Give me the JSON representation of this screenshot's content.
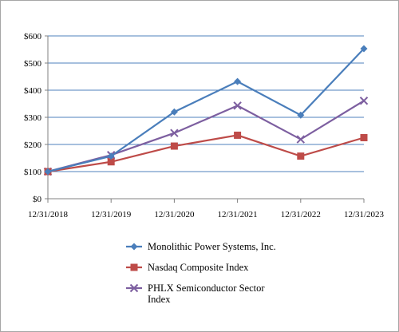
{
  "chart_data": {
    "type": "line",
    "categories": [
      "12/31/2018",
      "12/31/2019",
      "12/31/2020",
      "12/31/2021",
      "12/31/2022",
      "12/31/2023"
    ],
    "ylim": [
      0,
      600
    ],
    "yticks": [
      0,
      100,
      200,
      300,
      400,
      500,
      600
    ],
    "ytick_labels": [
      "$0",
      "$100",
      "$200",
      "$300",
      "$400",
      "$500",
      "$600"
    ],
    "grid": true,
    "legend_placement": "bottom",
    "series": [
      {
        "name": "Monolithic Power Systems, Inc.",
        "values": [
          100,
          157,
          320,
          432,
          308,
          553
        ],
        "color": "#4a7ebb",
        "marker": "diamond"
      },
      {
        "name": "Nasdaq Composite Index",
        "values": [
          100,
          136,
          194,
          234,
          157,
          225
        ],
        "color": "#be4b48",
        "marker": "square"
      },
      {
        "name": "PHLX Semiconductor Sector Index",
        "name_lines": [
          "PHLX Semiconductor Sector",
          "Index"
        ],
        "values": [
          100,
          161,
          242,
          343,
          219,
          361
        ],
        "color": "#7d5fa0",
        "marker": "x"
      }
    ]
  }
}
